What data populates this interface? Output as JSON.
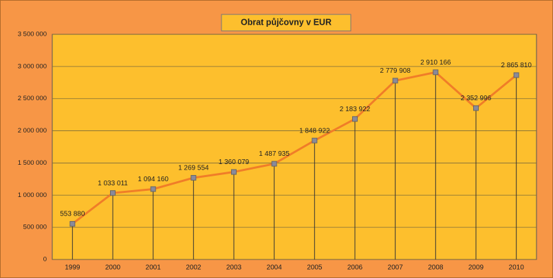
{
  "chart_data": {
    "type": "line",
    "title": "Obrat půjčovny v EUR",
    "categories": [
      "1999",
      "2000",
      "2001",
      "2002",
      "2003",
      "2004",
      "2005",
      "2006",
      "2007",
      "2008",
      "2009",
      "2010"
    ],
    "series": [
      {
        "name": "Obrat",
        "color": "#f07d28",
        "values": [
          553880,
          1033011,
          1094160,
          1269554,
          1360079,
          1487935,
          1848922,
          2183922,
          2779908,
          2910166,
          2352996,
          2865810
        ],
        "value_labels": [
          "553 880",
          "1 033 011",
          "1 094 160",
          "1 269 554",
          "1 360 079",
          "1 487 935",
          "1 848 922",
          "2 183 922",
          "2 779 908",
          "2 910 166",
          "2 352 996",
          "2 865 810"
        ]
      }
    ],
    "ylim": [
      0,
      3500000
    ],
    "yticks": [
      0,
      {
        "value": 500000,
        "label": "500 000"
      },
      {
        "value": 1000000,
        "label": "1 000 000"
      },
      {
        "value": 1500000,
        "label": "1 500 000"
      },
      {
        "value": 2000000,
        "label": "2 000 000"
      },
      {
        "value": 2500000,
        "label": "2 500 000"
      },
      {
        "value": 3000000,
        "label": "3 000 000"
      },
      {
        "value": 3500000,
        "label": "3 500 000"
      }
    ],
    "grid": true,
    "drop_lines": true
  }
}
